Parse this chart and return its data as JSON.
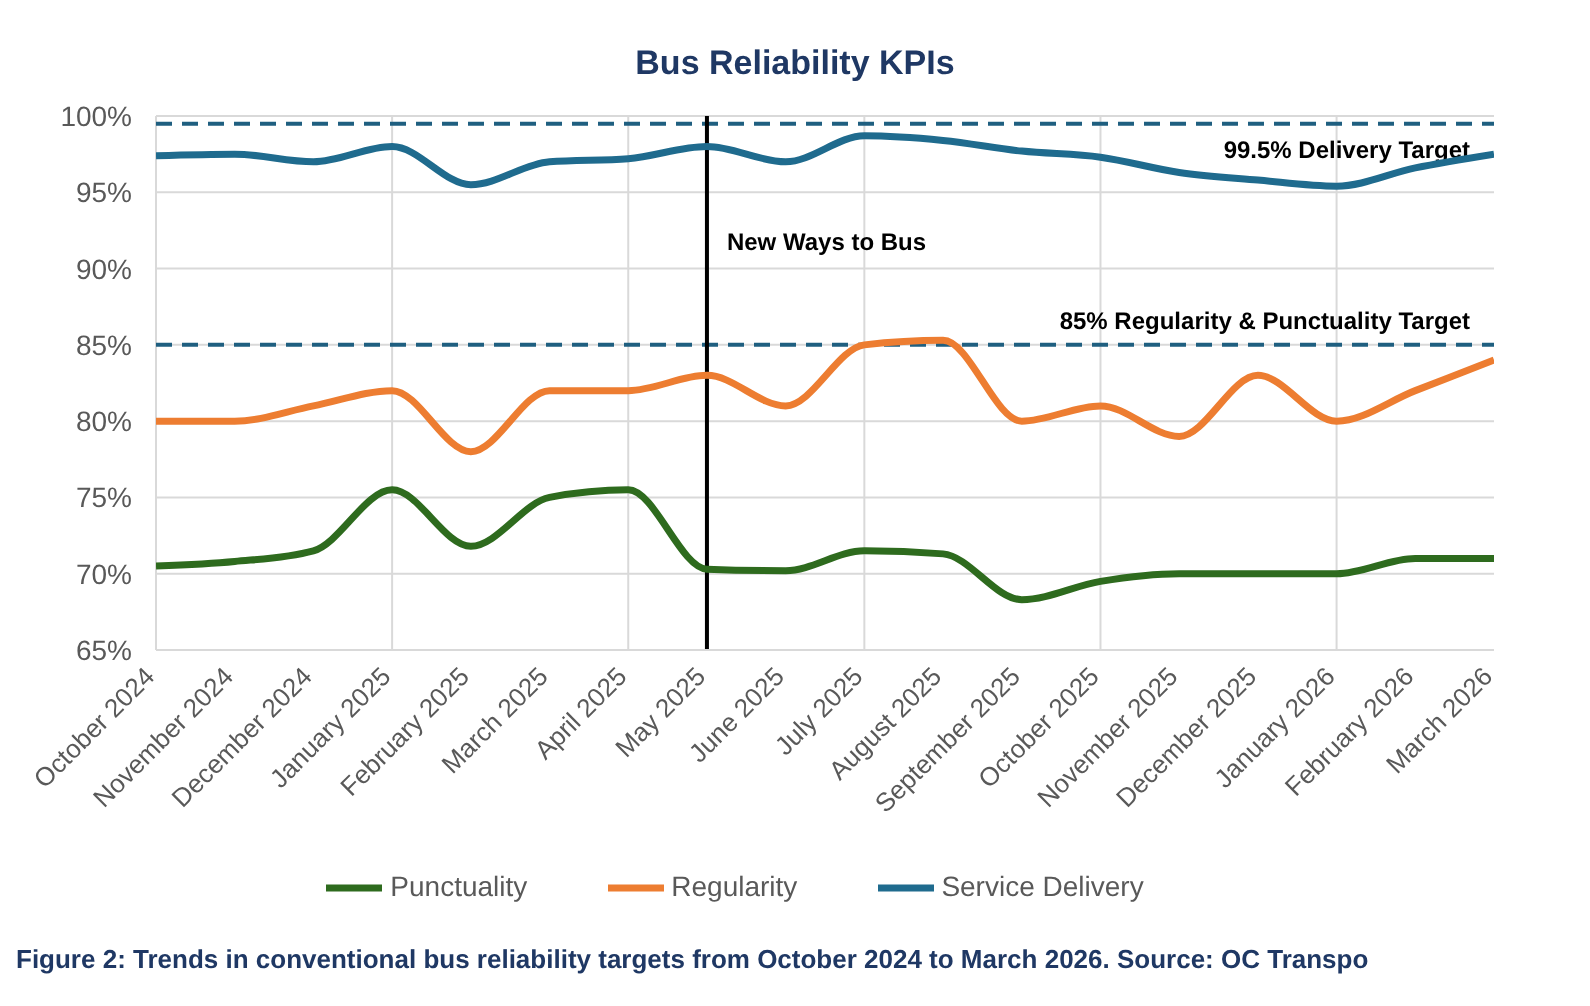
{
  "chart_data": {
    "type": "line",
    "title": "Bus Reliability KPIs",
    "categories": [
      "October 2024",
      "November 2024",
      "December 2024",
      "January 2025",
      "February 2025",
      "March 2025",
      "April 2025",
      "May 2025",
      "June 2025",
      "July 2025",
      "August 2025",
      "September 2025",
      "October 2025",
      "November 2025",
      "December 2025",
      "January 2026",
      "February 2026",
      "March 2026"
    ],
    "series": [
      {
        "name": "Service Delivery",
        "color": "#1f6b8e",
        "values": [
          97.4,
          97.5,
          97,
          98,
          95.5,
          97,
          97.2,
          98,
          97,
          98.7,
          98.4,
          97.7,
          97.3,
          96.3,
          95.8,
          95.4,
          96.6,
          97.5
        ]
      },
      {
        "name": "Regularity",
        "color": "#ed7d31",
        "values": [
          80,
          80,
          81,
          82,
          78,
          82,
          82,
          83,
          81,
          85,
          85.3,
          80,
          81,
          79,
          83,
          80,
          82,
          84
        ]
      },
      {
        "name": "Punctuality",
        "color": "#2e6b1e",
        "values": [
          70.5,
          70.8,
          71.5,
          75.5,
          71.8,
          75,
          75.5,
          70.3,
          70.2,
          71.5,
          71.3,
          68.3,
          69.5,
          70,
          70,
          70,
          71,
          71
        ]
      }
    ],
    "ylim": [
      65,
      100
    ],
    "yticks": [
      {
        "value": 65,
        "label": "65%"
      },
      {
        "value": 70,
        "label": "70%"
      },
      {
        "value": 75,
        "label": "75%"
      },
      {
        "value": 80,
        "label": "80%"
      },
      {
        "value": 85,
        "label": "85%"
      },
      {
        "value": 90,
        "label": "90%"
      },
      {
        "value": 95,
        "label": "95%"
      },
      {
        "value": 100,
        "label": "100%"
      }
    ],
    "ref_lines": [
      {
        "axis": "y",
        "value": 99.5,
        "label": "99.5% Delivery Target",
        "color": "#1f5f80",
        "line_style": "dashed"
      },
      {
        "axis": "y",
        "value": 85,
        "label": "85% Regularity & Punctuality Target",
        "color": "#1f5f80",
        "line_style": "dashed"
      },
      {
        "axis": "x",
        "value": "May 2025",
        "label": "New Ways to Bus",
        "color": "#000000",
        "line_style": "solid"
      }
    ],
    "grid": true,
    "legend": "bottom",
    "marker": "none",
    "line_style": "solid",
    "annotations": [
      "Figure 2: Trends in conventional bus reliability targets from October 2024 to March 2026. Source: OC Transpo"
    ]
  }
}
